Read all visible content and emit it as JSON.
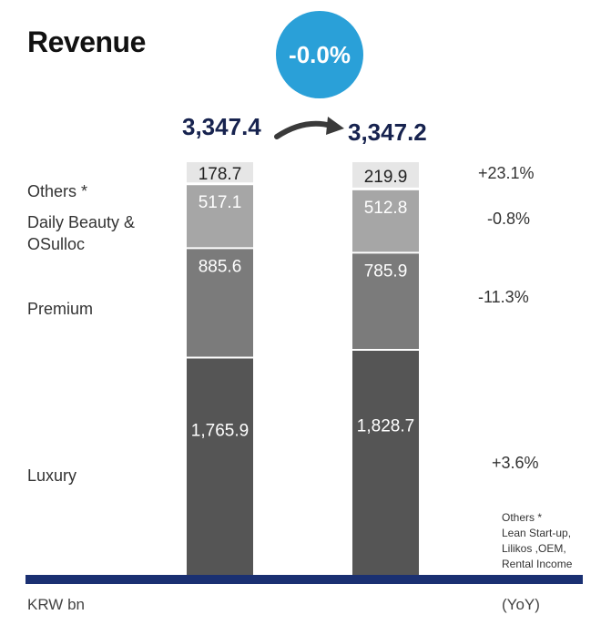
{
  "chart_data": {
    "type": "bar",
    "stacked": true,
    "title": "Revenue",
    "change_badge": "-0.0%",
    "unit_label": "KRW bn",
    "yoy_header": "(YoY)",
    "categories": [
      "",
      ""
    ],
    "totals": [
      "3,347.4",
      "3,347.2"
    ],
    "series": [
      {
        "name": "Luxury",
        "values": [
          1765.9,
          1828.7
        ],
        "value_labels": [
          "1,765.9",
          "1,828.7"
        ],
        "yoy": "+3.6%",
        "color": "#555555",
        "text_color": "#ffffff"
      },
      {
        "name": "Premium",
        "values": [
          885.6,
          785.9
        ],
        "value_labels": [
          "885.6",
          "785.9"
        ],
        "yoy": "-11.3%",
        "color": "#7b7b7b",
        "text_color": "#ffffff"
      },
      {
        "name": "Daily Beauty & OSulloc",
        "name_lines": [
          "Daily Beauty &",
          "OSulloc"
        ],
        "values": [
          517.1,
          512.8
        ],
        "value_labels": [
          "517.1",
          "512.8"
        ],
        "yoy": "-0.8%",
        "color": "#a6a6a6",
        "text_color": "#ffffff"
      },
      {
        "name": "Others *",
        "values": [
          178.7,
          219.9
        ],
        "value_labels": [
          "178.7",
          "219.9"
        ],
        "yoy": "+23.1%",
        "color": "#e6e6e6",
        "text_color": "#222222"
      }
    ],
    "footnote": [
      "Others *",
      "Lean Start-up,",
      "Lilikos ,OEM,",
      "Rental Income"
    ],
    "grid": false,
    "legend": "left"
  }
}
